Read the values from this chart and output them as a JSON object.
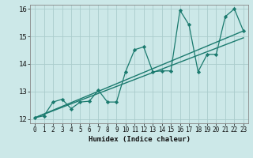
{
  "title": "",
  "xlabel": "Humidex (Indice chaleur)",
  "ylabel": "",
  "xlim": [
    -0.5,
    23.5
  ],
  "ylim": [
    11.85,
    16.15
  ],
  "yticks": [
    12,
    13,
    14,
    15,
    16
  ],
  "xticks": [
    0,
    1,
    2,
    3,
    4,
    5,
    6,
    7,
    8,
    9,
    10,
    11,
    12,
    13,
    14,
    15,
    16,
    17,
    18,
    19,
    20,
    21,
    22,
    23
  ],
  "bg_color": "#cce8e8",
  "grid_color": "#aacccc",
  "line_color": "#1a7a6e",
  "line1_x": [
    0,
    1,
    2,
    3,
    4,
    5,
    6,
    7,
    8,
    9,
    10,
    11,
    12,
    13,
    14,
    15,
    16,
    17,
    18,
    19,
    20,
    21,
    22,
    23
  ],
  "line1_y": [
    12.05,
    12.12,
    12.62,
    12.72,
    12.38,
    12.62,
    12.65,
    13.05,
    12.62,
    12.62,
    13.72,
    14.52,
    14.62,
    13.72,
    13.75,
    13.75,
    15.95,
    15.42,
    13.72,
    14.35,
    14.35,
    15.72,
    16.0,
    15.2
  ],
  "line2_x": [
    0,
    23
  ],
  "line2_y": [
    12.05,
    15.2
  ],
  "line3_x": [
    0,
    23
  ],
  "line3_y": [
    12.05,
    14.95
  ]
}
